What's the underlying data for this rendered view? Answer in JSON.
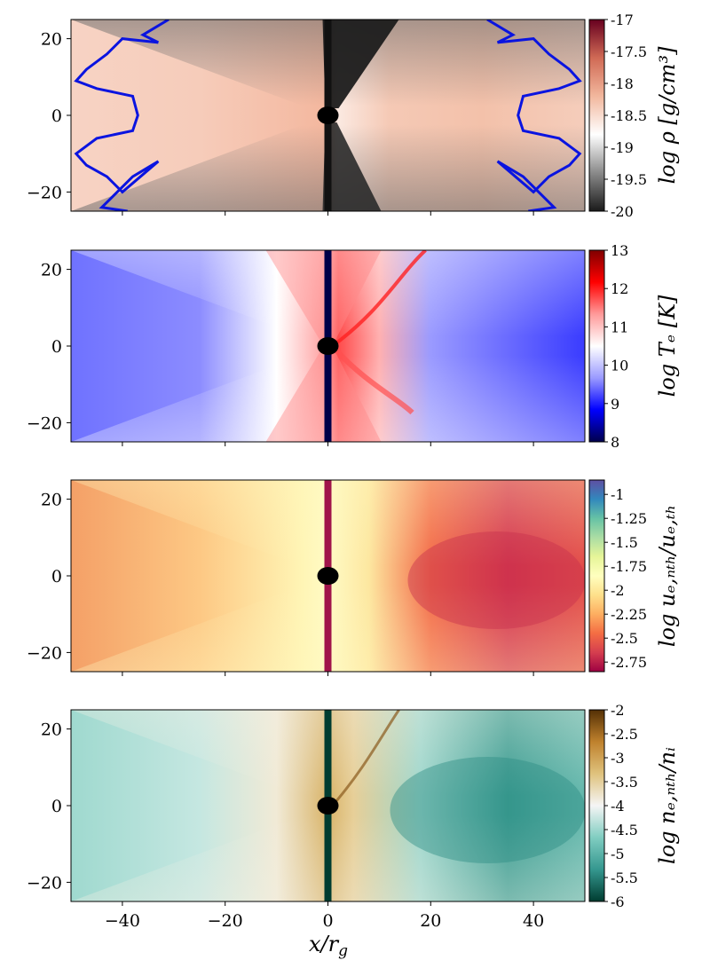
{
  "figure": {
    "xlabel": "x/r_g",
    "xlabel_main": "x/r",
    "xlabel_sub": "g"
  },
  "chart_data": [
    {
      "type": "heatmap",
      "quantity": "log rho [g/cm^3]",
      "colorbar_label": "log ρ [g/cm³]",
      "colormap": [
        "#1a1a1a",
        "#8a8a8a",
        "#ffffff",
        "#f2b79d",
        "#d06a55",
        "#67001f"
      ],
      "colorbar_range": [
        -20,
        -17
      ],
      "colorbar_ticks": [
        "-17",
        "-17.5",
        "-18",
        "-18.5",
        "-19",
        "-19.5",
        "-20"
      ],
      "xlim": [
        -50,
        50
      ],
      "ylim": [
        -25,
        25
      ],
      "yticks": [
        "20",
        "0",
        "−20"
      ],
      "xticks_shown": false,
      "contour_color": "#0a14e0"
    },
    {
      "type": "heatmap",
      "quantity": "log T_e [K]",
      "colorbar_label": "log Tₑ [K]",
      "colormap": [
        "#00004c",
        "#0000ff",
        "#9a9aff",
        "#ffffff",
        "#ff9a9a",
        "#ff0000",
        "#800000"
      ],
      "colorbar_range": [
        8,
        13
      ],
      "colorbar_ticks": [
        "13",
        "12",
        "11",
        "10",
        "9",
        "8"
      ],
      "xlim": [
        -50,
        50
      ],
      "ylim": [
        -25,
        25
      ],
      "yticks": [
        "20",
        "0",
        "−20"
      ],
      "xticks_shown": false
    },
    {
      "type": "heatmap",
      "quantity": "log u_e,nth / u_e,th",
      "colorbar_label": "log uₑ,ₙₜₕ/uₑ,ₜₕ",
      "colormap": [
        "#9e0142",
        "#d53e4f",
        "#f46d43",
        "#fdae61",
        "#fee08b",
        "#ffffbf",
        "#e6f598",
        "#abdda4",
        "#66c2a5",
        "#3288bd",
        "#5e4fa2"
      ],
      "colorbar_range": [
        -2.85,
        -0.85
      ],
      "colorbar_ticks": [
        "-1",
        "-1.25",
        "-1.5",
        "-1.75",
        "-2",
        "-2.25",
        "-2.5",
        "-2.75"
      ],
      "xlim": [
        -50,
        50
      ],
      "ylim": [
        -25,
        25
      ],
      "yticks": [
        "20",
        "0",
        "−20"
      ],
      "xticks_shown": false
    },
    {
      "type": "heatmap",
      "quantity": "log n_e,nth / n_i",
      "colorbar_label": "log nₑ,ₙₜₕ/nᵢ",
      "colormap": [
        "#003c30",
        "#35978f",
        "#80cdc1",
        "#f5f5f5",
        "#dfc27d",
        "#bf812d",
        "#543005"
      ],
      "colorbar_range": [
        -6,
        -2
      ],
      "colorbar_ticks": [
        "-2",
        "-2.5",
        "-3",
        "-3.5",
        "-4",
        "-4.5",
        "-5",
        "-5.5",
        "-6"
      ],
      "xlim": [
        -50,
        50
      ],
      "ylim": [
        -25,
        25
      ],
      "yticks": [
        "20",
        "0",
        "−20"
      ],
      "xticks": [
        "−40",
        "−20",
        "0",
        "20",
        "40"
      ],
      "xticks_shown": true
    }
  ]
}
